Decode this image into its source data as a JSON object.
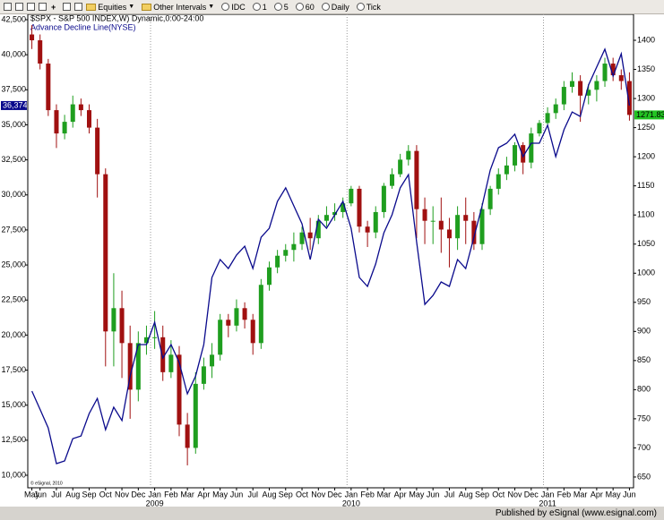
{
  "toolbar": {
    "items": [
      "Equities",
      "Other Intervals",
      "IDC",
      "1",
      "5",
      "60",
      "Daily",
      "Tick"
    ]
  },
  "footer": "Published by eSignal (www.esignal.com)",
  "chart_data": {
    "type": "candlestick",
    "title": "$SPX - S&P 500 INDEX,W) Dynamic,0:00-24:00",
    "copyright": "© eSignal, 2010",
    "categories": [
      "May",
      "Jun",
      null,
      "Jul",
      null,
      "Aug",
      null,
      "Sep",
      null,
      "Oct",
      null,
      "Nov",
      null,
      "Dec",
      null,
      "Jan",
      null,
      "Feb",
      null,
      "Mar",
      null,
      "Apr",
      null,
      "May",
      null,
      "Jun",
      null,
      "Jul",
      null,
      "Aug",
      null,
      "Sep",
      null,
      "Oct",
      null,
      "Nov",
      null,
      "Dec",
      null,
      "Jan",
      null,
      "Feb",
      null,
      "Mar",
      null,
      "Apr",
      null,
      "May",
      null,
      "Jun",
      null,
      "Jul",
      null,
      "Aug",
      null,
      "Sep",
      null,
      "Oct",
      null,
      "Nov",
      null,
      "Dec",
      null,
      "Jan",
      null,
      "Feb",
      null,
      "Mar",
      null,
      "Apr",
      null,
      "May",
      null,
      "Jun"
    ],
    "years": [
      null,
      null,
      null,
      null,
      null,
      null,
      null,
      null,
      null,
      null,
      null,
      null,
      null,
      null,
      null,
      "2009",
      null,
      null,
      null,
      null,
      null,
      null,
      null,
      null,
      null,
      null,
      null,
      null,
      null,
      null,
      null,
      null,
      null,
      null,
      null,
      null,
      null,
      null,
      null,
      "2010",
      null,
      null,
      null,
      null,
      null,
      null,
      null,
      null,
      null,
      null,
      null,
      null,
      null,
      null,
      null,
      null,
      null,
      null,
      null,
      null,
      null,
      null,
      null,
      "2011",
      null,
      null,
      null,
      null,
      null,
      null,
      null,
      null,
      null,
      null
    ],
    "ohlc": {
      "axis": "y2",
      "up_color": "#1f9e1f",
      "down_color": "#a01010",
      "last_label": "1271.83",
      "last_label_color": "#22c422",
      "open": [
        1410,
        1400,
        1360,
        1280,
        1240,
        1260,
        1290,
        1280,
        1250,
        1170,
        900,
        940,
        880,
        800,
        880,
        890,
        890,
        830,
        860,
        740,
        700,
        810,
        840,
        860,
        920,
        910,
        940,
        920,
        880,
        980,
        1010,
        1030,
        1040,
        1050,
        1070,
        1060,
        1090,
        1100,
        1105,
        1120,
        1145,
        1080,
        1070,
        1105,
        1150,
        1170,
        1195,
        1210,
        1110,
        1090,
        1090,
        1075,
        1060,
        1100,
        1090,
        1050,
        1110,
        1145,
        1170,
        1185,
        1220,
        1190,
        1240,
        1258,
        1275,
        1290,
        1320,
        1330,
        1305,
        1315,
        1330,
        1360,
        1340,
        1330
      ],
      "high": [
        1426,
        1410,
        1368,
        1290,
        1272,
        1305,
        1300,
        1290,
        1265,
        1180,
        1000,
        970,
        910,
        900,
        910,
        935,
        910,
        885,
        875,
        760,
        830,
        855,
        880,
        930,
        930,
        955,
        950,
        930,
        990,
        1020,
        1040,
        1050,
        1070,
        1080,
        1095,
        1100,
        1115,
        1120,
        1130,
        1150,
        1150,
        1090,
        1115,
        1155,
        1180,
        1205,
        1220,
        1220,
        1130,
        1115,
        1130,
        1095,
        1115,
        1130,
        1105,
        1120,
        1150,
        1180,
        1200,
        1225,
        1225,
        1250,
        1263,
        1285,
        1300,
        1330,
        1345,
        1340,
        1325,
        1340,
        1370,
        1370,
        1350,
        1345
      ],
      "low": [
        1385,
        1350,
        1270,
        1215,
        1230,
        1250,
        1270,
        1240,
        1130,
        840,
        840,
        820,
        750,
        780,
        860,
        870,
        815,
        820,
        720,
        670,
        690,
        800,
        820,
        850,
        890,
        900,
        905,
        860,
        870,
        970,
        1000,
        1020,
        1020,
        1040,
        1040,
        1050,
        1080,
        1090,
        1095,
        1115,
        1070,
        1045,
        1060,
        1095,
        1145,
        1165,
        1185,
        1060,
        1050,
        1050,
        1035,
        1010,
        1040,
        1050,
        1040,
        1040,
        1100,
        1135,
        1160,
        1175,
        1170,
        1180,
        1235,
        1253,
        1265,
        1280,
        1310,
        1260,
        1290,
        1295,
        1320,
        1330,
        1315,
        1262
      ],
      "close": [
        1400,
        1360,
        1280,
        1240,
        1260,
        1290,
        1280,
        1250,
        1170,
        900,
        940,
        880,
        800,
        880,
        890,
        890,
        830,
        860,
        740,
        700,
        810,
        840,
        860,
        920,
        910,
        940,
        920,
        880,
        980,
        1010,
        1030,
        1040,
        1050,
        1070,
        1060,
        1090,
        1100,
        1105,
        1120,
        1145,
        1080,
        1070,
        1105,
        1150,
        1170,
        1195,
        1210,
        1110,
        1090,
        1090,
        1075,
        1060,
        1100,
        1090,
        1050,
        1110,
        1145,
        1170,
        1185,
        1220,
        1190,
        1240,
        1258,
        1275,
        1290,
        1320,
        1330,
        1305,
        1315,
        1330,
        1360,
        1340,
        1330,
        1271.83
      ]
    },
    "series": [
      {
        "name": "Advance Decline Line(NYSE)",
        "type": "line",
        "axis": "y",
        "color": "#0a0a8c",
        "last_label": "36,374",
        "values": [
          16000,
          14700,
          13380,
          10830,
          11020,
          12610,
          12800,
          14400,
          15480,
          13250,
          14850,
          13900,
          17080,
          19320,
          19320,
          20910,
          18360,
          19320,
          18040,
          15810,
          17080,
          19320,
          24110,
          25390,
          24750,
          25710,
          26340,
          24750,
          26980,
          27620,
          29540,
          30500,
          29220,
          27940,
          25390,
          28260,
          27620,
          28580,
          29540,
          27620,
          24110,
          23470,
          25070,
          27300,
          28580,
          30500,
          31450,
          26660,
          22190,
          22830,
          23790,
          23470,
          25390,
          24750,
          26980,
          29220,
          31770,
          33370,
          33690,
          34330,
          32730,
          33690,
          33690,
          34970,
          32730,
          34650,
          35920,
          35600,
          37840,
          39120,
          40390,
          38480,
          40070,
          36374
        ]
      }
    ],
    "ylim": [
      9106,
      42883
    ],
    "yticks": [
      {
        "value": 10000,
        "label": "10,000"
      },
      {
        "value": 12500,
        "label": "12,500"
      },
      {
        "value": 15000,
        "label": "15,000"
      },
      {
        "value": 17500,
        "label": "17,500"
      },
      {
        "value": 20000,
        "label": "20,000"
      },
      {
        "value": 22500,
        "label": "22,500"
      },
      {
        "value": 25000,
        "label": "25,000"
      },
      {
        "value": 27500,
        "label": "27,500"
      },
      {
        "value": 30000,
        "label": "30,000"
      },
      {
        "value": 32500,
        "label": "32,500"
      },
      {
        "value": 35000,
        "label": "35,000"
      },
      {
        "value": 37500,
        "label": "37,500"
      },
      {
        "value": 40000,
        "label": "40,000"
      },
      {
        "value": 42500,
        "label": "42,500"
      }
    ],
    "y2lim": [
      631.5,
      1444.6
    ],
    "y2ticks": [
      650,
      700,
      750,
      800,
      850,
      900,
      950,
      1000,
      1050,
      1100,
      1150,
      1200,
      1250,
      1300,
      1350,
      1400
    ],
    "year_grid": true
  }
}
